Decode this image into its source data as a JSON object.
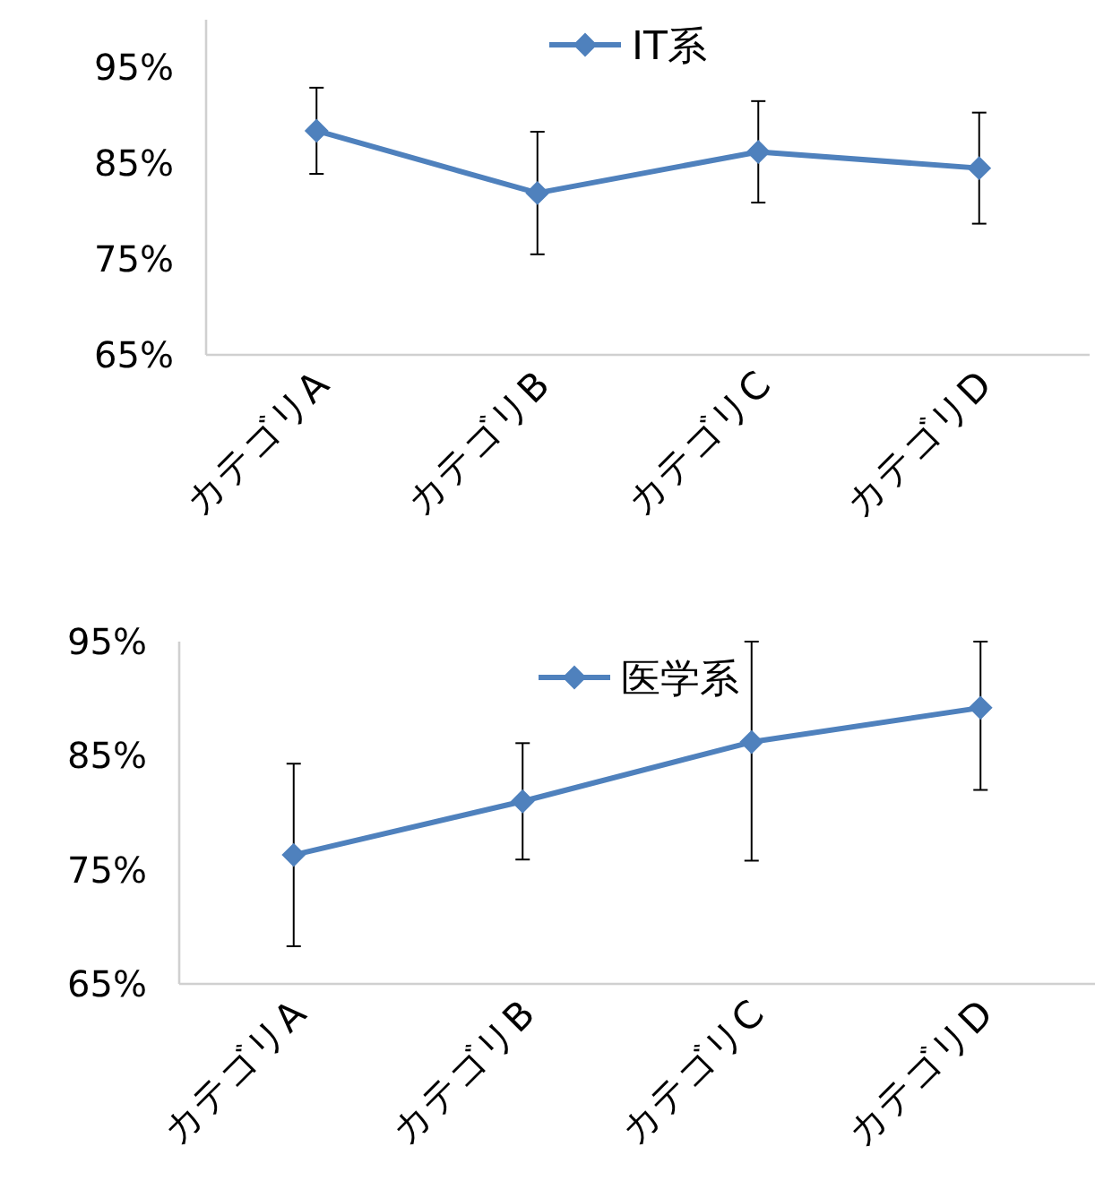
{
  "chart_data": [
    {
      "type": "line",
      "categories": [
        "カテゴリA",
        "カテゴリB",
        "カテゴリC",
        "カテゴリD"
      ],
      "series": [
        {
          "name": "IT系",
          "color": "#4f81bd",
          "values": [
            88.4,
            81.9,
            86.2,
            84.5
          ],
          "errors": [
            4.5,
            6.4,
            5.3,
            5.8
          ]
        }
      ],
      "ylim": [
        65,
        100
      ],
      "yticks": [
        {
          "value": 65,
          "label": "65%"
        },
        {
          "value": 75,
          "label": "75%"
        },
        {
          "value": 85,
          "label": "85%"
        },
        {
          "value": 95,
          "label": "95%"
        }
      ],
      "legend": "top",
      "marker": "diamond",
      "grid": false
    },
    {
      "type": "line",
      "categories": [
        "カテゴリA",
        "カテゴリB",
        "カテゴリC",
        "カテゴリD"
      ],
      "series": [
        {
          "name": "医学系",
          "color": "#4f81bd",
          "values": [
            76.3,
            81.0,
            86.2,
            89.2
          ],
          "errors": [
            8,
            5.1,
            [
              75.8,
              95
            ],
            [
              82.0,
              95
            ]
          ]
        }
      ],
      "ylim": [
        65,
        95
      ],
      "yticks": [
        {
          "value": 65,
          "label": "65%"
        },
        {
          "value": 75,
          "label": "75%"
        },
        {
          "value": 85,
          "label": "85%"
        },
        {
          "value": 95,
          "label": "95%"
        }
      ],
      "legend": "top",
      "marker": "diamond",
      "grid": false
    }
  ]
}
